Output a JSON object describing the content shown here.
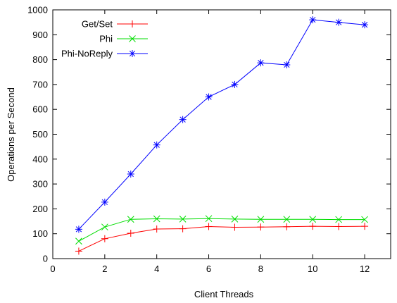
{
  "chart_data": {
    "type": "line",
    "xlabel": "Client Threads",
    "ylabel": "Operations per Second",
    "xlim": [
      0,
      13
    ],
    "ylim": [
      0,
      1000
    ],
    "x_ticks": [
      0,
      2,
      4,
      6,
      8,
      10,
      12
    ],
    "y_ticks": [
      0,
      100,
      200,
      300,
      400,
      500,
      600,
      700,
      800,
      900,
      1000
    ],
    "grid": false,
    "legend_position": "top-left",
    "x": [
      1,
      2,
      3,
      4,
      5,
      6,
      7,
      8,
      9,
      10,
      11,
      12
    ],
    "series": [
      {
        "name": "Get/Set",
        "color": "#ff0000",
        "marker": "plus",
        "values": [
          30,
          80,
          102,
          119,
          120,
          129,
          126,
          127,
          128,
          130,
          129,
          130
        ]
      },
      {
        "name": "Phi",
        "color": "#00dd00",
        "marker": "x",
        "values": [
          70,
          127,
          158,
          160,
          159,
          161,
          159,
          158,
          158,
          158,
          157,
          157
        ]
      },
      {
        "name": "Phi-NoReply",
        "color": "#0000ff",
        "marker": "star",
        "values": [
          118,
          227,
          340,
          457,
          559,
          650,
          700,
          787,
          779,
          960,
          950,
          940
        ]
      }
    ]
  }
}
